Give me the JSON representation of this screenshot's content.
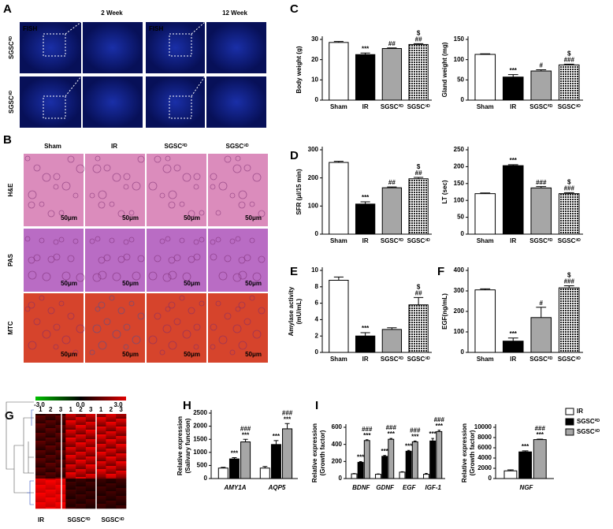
{
  "panel_letters": [
    "A",
    "B",
    "C",
    "D",
    "E",
    "F",
    "G",
    "H",
    "I"
  ],
  "fish": {
    "columns": [
      "2 Week",
      "12 Week"
    ],
    "rows": [
      "SGSC²ᴰ",
      "SGSC³ᴰ"
    ],
    "stain": "FISH"
  },
  "histology": {
    "columns": [
      "Sham",
      "IR",
      "SGSC²ᴰ",
      "SGSC³ᴰ"
    ],
    "rows": [
      "H&E",
      "PAS",
      "MTC"
    ],
    "scale_bar": "50μm"
  },
  "heatmap": {
    "scale_labels": [
      "-3.0",
      "0.0",
      "3.0"
    ],
    "replicates": [
      "1",
      "2",
      "3"
    ],
    "groups": [
      "IR",
      "SGSC²ᴰ",
      "SGSC³ᴰ"
    ]
  },
  "chart_data": [
    {
      "type": "bar",
      "ylabel": [
        "Body weight (g)"
      ],
      "categories": [
        "Sham",
        "IR",
        "SGSC²ᴰ",
        "SGSC³ᴰ"
      ],
      "values": [
        28.5,
        22.5,
        25.5,
        27.5
      ],
      "errors": [
        0.5,
        0.8,
        0.3,
        0.4
      ],
      "colors": [
        "#ffffff",
        "#000000",
        "#a6a6a6",
        "#444444"
      ],
      "patterns": [
        null,
        null,
        null,
        "dots"
      ],
      "annotations": [
        null,
        "***",
        "##",
        "##"
      ],
      "annotations_top": [
        null,
        null,
        null,
        "$"
      ],
      "ylim": [
        0,
        30
      ],
      "yticks": [
        0,
        10,
        20,
        30
      ]
    },
    {
      "type": "bar",
      "ylabel": [
        "Gland  weight (mg)"
      ],
      "categories": [
        "Sham",
        "IR",
        "SGSC²ᴰ",
        "SGSC³ᴰ"
      ],
      "values": [
        113,
        57,
        72,
        87
      ],
      "errors": [
        1.5,
        6,
        3,
        2
      ],
      "colors": [
        "#ffffff",
        "#000000",
        "#a6a6a6",
        "#444444"
      ],
      "patterns": [
        null,
        null,
        null,
        "dots"
      ],
      "annotations": [
        null,
        "***",
        "#",
        "###"
      ],
      "annotations_top": [
        null,
        null,
        null,
        "$"
      ],
      "ylim": [
        0,
        150
      ],
      "yticks": [
        0,
        50,
        100,
        150
      ]
    },
    {
      "type": "bar",
      "ylabel": [
        "SFR (μl/15 min)"
      ],
      "categories": [
        "Sham",
        "IR",
        "SGSC²ᴰ",
        "SGSC³ᴰ"
      ],
      "values": [
        255,
        107,
        165,
        197
      ],
      "errors": [
        4,
        8,
        3,
        5
      ],
      "colors": [
        "#ffffff",
        "#000000",
        "#a6a6a6",
        "#444444"
      ],
      "patterns": [
        null,
        null,
        null,
        "dots"
      ],
      "annotations": [
        null,
        "***",
        "##",
        "##"
      ],
      "annotations_top": [
        null,
        null,
        null,
        "$"
      ],
      "ylim": [
        0,
        300
      ],
      "yticks": [
        0,
        100,
        200,
        300
      ]
    },
    {
      "type": "bar",
      "ylabel": [
        "LT (sec)"
      ],
      "categories": [
        "Sham",
        "IR",
        "SGSC²ᴰ",
        "SGSC³ᴰ"
      ],
      "values": [
        120,
        203,
        137,
        120
      ],
      "errors": [
        2,
        3,
        4,
        3
      ],
      "colors": [
        "#ffffff",
        "#000000",
        "#a6a6a6",
        "#444444"
      ],
      "patterns": [
        null,
        null,
        null,
        "dots"
      ],
      "annotations": [
        null,
        "***",
        "###",
        "###"
      ],
      "annotations_top": [
        null,
        null,
        null,
        "$"
      ],
      "ylim": [
        0,
        250
      ],
      "yticks": [
        0,
        50,
        100,
        150,
        200,
        250
      ]
    },
    {
      "type": "bar",
      "ylabel": [
        "Amylase activity",
        "(mU/mL)"
      ],
      "categories": [
        "Sham",
        "IR",
        "SGSC²ᴰ",
        "SGSC³ᴰ"
      ],
      "values": [
        8.8,
        2.0,
        2.8,
        5.8
      ],
      "errors": [
        0.4,
        0.4,
        0.2,
        0.9
      ],
      "colors": [
        "#ffffff",
        "#000000",
        "#a6a6a6",
        "#444444"
      ],
      "patterns": [
        null,
        null,
        null,
        "dots"
      ],
      "annotations": [
        null,
        "***",
        null,
        "##"
      ],
      "annotations_top": [
        null,
        null,
        null,
        "$"
      ],
      "ylim": [
        0,
        10
      ],
      "yticks": [
        0,
        2,
        4,
        6,
        8,
        10
      ]
    },
    {
      "type": "bar",
      "ylabel": [
        "EGF(ng/mL)"
      ],
      "categories": [
        "Sham",
        "IR",
        "SGSC²ᴰ",
        "SGSC³ᴰ"
      ],
      "values": [
        305,
        55,
        170,
        315
      ],
      "errors": [
        5,
        15,
        50,
        10
      ],
      "colors": [
        "#ffffff",
        "#000000",
        "#a6a6a6",
        "#444444"
      ],
      "patterns": [
        null,
        null,
        null,
        "dots"
      ],
      "annotations": [
        null,
        "***",
        "#",
        "###"
      ],
      "annotations_top": [
        null,
        null,
        null,
        "$"
      ],
      "ylim": [
        0,
        400
      ],
      "yticks": [
        0,
        100,
        200,
        300,
        400
      ]
    },
    {
      "type": "grouped_bar",
      "ylabel": [
        "Relative expression",
        "(Salivary function)"
      ],
      "categories": [
        "AMY1A",
        "AQP5"
      ],
      "italic_categories": true,
      "series": [
        {
          "name": "IR",
          "color": "#ffffff",
          "values": [
            400,
            400
          ],
          "errors": [
            30,
            60
          ],
          "annotations": [
            null,
            null
          ],
          "annotations_top": [
            null,
            null
          ]
        },
        {
          "name": "SGSC²ᴰ",
          "color": "#000000",
          "values": [
            750,
            1300
          ],
          "errors": [
            50,
            150
          ],
          "annotations": [
            "***",
            "***"
          ],
          "annotations_top": [
            null,
            null
          ]
        },
        {
          "name": "SGSC³ᴰ",
          "color": "#a6a6a6",
          "values": [
            1400,
            1900
          ],
          "errors": [
            100,
            200
          ],
          "annotations": [
            "***",
            "***"
          ],
          "annotations_top": [
            "###",
            "###"
          ]
        }
      ],
      "legend": false,
      "ylim": [
        0,
        2500
      ],
      "yticks": [
        0,
        500,
        1000,
        1500,
        2000,
        2500
      ]
    },
    {
      "type": "grouped_bar",
      "ylabel": [
        "Relative expression",
        "(Growth factor)"
      ],
      "categories": [
        "BDNF",
        "GDNF",
        "EGF",
        "IGF-1"
      ],
      "italic_categories": true,
      "series": [
        {
          "name": "IR",
          "color": "#ffffff",
          "values": [
            55,
            50,
            75,
            50
          ],
          "errors": [
            4,
            4,
            5,
            10
          ],
          "annotations": [
            null,
            null,
            null,
            null
          ],
          "annotations_top": [
            null,
            null,
            null,
            null
          ]
        },
        {
          "name": "SGSC²ᴰ",
          "color": "#000000",
          "values": [
            190,
            260,
            320,
            440
          ],
          "errors": [
            8,
            10,
            10,
            30
          ],
          "annotations": [
            "***",
            "***",
            "***",
            "***"
          ],
          "annotations_top": [
            null,
            null,
            null,
            null
          ]
        },
        {
          "name": "SGSC³ᴰ",
          "color": "#a6a6a6",
          "values": [
            445,
            460,
            430,
            550
          ],
          "errors": [
            10,
            10,
            10,
            15
          ],
          "annotations": [
            "***",
            "***",
            "***",
            "***"
          ],
          "annotations_top": [
            "###",
            "###",
            "###",
            "###"
          ]
        }
      ],
      "legend": false,
      "ylim": [
        0,
        600
      ],
      "yticks": [
        0,
        200,
        400,
        600
      ]
    },
    {
      "type": "grouped_bar",
      "ylabel": [
        "Relative expression",
        "(Growth factor)"
      ],
      "categories": [
        "NGF"
      ],
      "italic_categories": true,
      "series": [
        {
          "name": "IR",
          "color": "#ffffff",
          "values": [
            1500
          ],
          "errors": [
            200
          ],
          "annotations": [
            null
          ],
          "annotations_top": [
            null
          ]
        },
        {
          "name": "SGSC²ᴰ",
          "color": "#000000",
          "values": [
            5200
          ],
          "errors": [
            200
          ],
          "annotations": [
            "***"
          ],
          "annotations_top": [
            null
          ]
        },
        {
          "name": "SGSC³ᴰ",
          "color": "#a6a6a6",
          "values": [
            7600
          ],
          "errors": [
            100
          ],
          "annotations": [
            "***"
          ],
          "annotations_top": [
            "###"
          ]
        }
      ],
      "legend": "right",
      "ylim": [
        0,
        10000
      ],
      "yticks": [
        0,
        2000,
        4000,
        6000,
        8000,
        10000
      ]
    }
  ]
}
